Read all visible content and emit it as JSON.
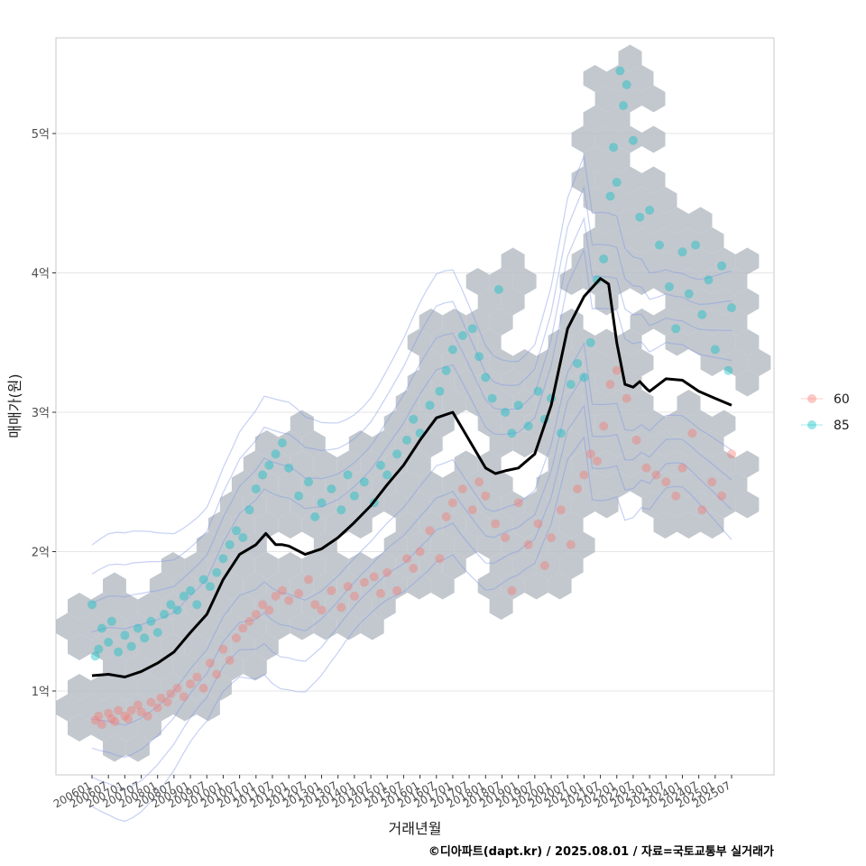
{
  "chart_data": {
    "type": "scatter",
    "xlabel": "거래년월",
    "ylabel": "매매가(원)",
    "caption": "©디아파트(dapt.kr) / 2025.08.01 / 자료=국토교통부 실거래가",
    "x_tick_labels": [
      "200601",
      "200607",
      "200701",
      "200707",
      "200801",
      "200807",
      "200901",
      "200907",
      "201001",
      "201007",
      "201101",
      "201107",
      "201201",
      "201207",
      "201301",
      "201307",
      "201401",
      "201407",
      "201501",
      "201507",
      "201601",
      "201607",
      "201701",
      "201707",
      "201801",
      "201807",
      "201901",
      "201907",
      "202001",
      "202007",
      "202101",
      "202107",
      "202201",
      "202207",
      "202301",
      "202307",
      "202401",
      "202407",
      "202501",
      "202507"
    ],
    "y_tick_labels": [
      "1억",
      "2억",
      "3억",
      "4억",
      "5억"
    ],
    "y_tick_values": [
      1,
      2,
      3,
      4,
      5
    ],
    "ylim": [
      0.4,
      5.7
    ],
    "grid": true,
    "legend_position": "right",
    "legend": [
      {
        "label": "60",
        "color": "#F8766D"
      },
      {
        "label": "85",
        "color": "#00BFC4"
      }
    ],
    "hexbin_color": "#b3bac2",
    "contour_color": "#8096e6",
    "trend_color": "#000000",
    "trend_series": {
      "name": "",
      "x": [
        2006.0,
        2006.5,
        2007.0,
        2007.5,
        2008.0,
        2008.5,
        2009.0,
        2009.5,
        2010.0,
        2010.5,
        2011.0,
        2011.3,
        2011.6,
        2011.8,
        2012.0,
        2012.5,
        2013.0,
        2013.5,
        2014.0,
        2014.5,
        2015.0,
        2015.5,
        2016.0,
        2016.5,
        2017.0,
        2017.5,
        2018.0,
        2018.3,
        2018.6,
        2019.0,
        2019.5,
        2020.0,
        2020.5,
        2021.0,
        2021.5,
        2021.75,
        2022.0,
        2022.25,
        2022.5,
        2022.7,
        2022.9,
        2023.0,
        2023.5,
        2024.0,
        2024.5,
        2025.0,
        2025.5
      ],
      "y": [
        1.11,
        1.12,
        1.1,
        1.14,
        1.2,
        1.28,
        1.42,
        1.55,
        1.8,
        1.98,
        2.05,
        2.13,
        2.05,
        2.05,
        2.04,
        1.98,
        2.02,
        2.1,
        2.21,
        2.33,
        2.48,
        2.62,
        2.8,
        2.96,
        3.0,
        2.8,
        2.6,
        2.56,
        2.58,
        2.6,
        2.7,
        3.05,
        3.6,
        3.83,
        3.96,
        3.92,
        3.5,
        3.2,
        3.18,
        3.22,
        3.17,
        3.15,
        3.24,
        3.23,
        3.15,
        3.1,
        3.05
      ]
    },
    "series": [
      {
        "name": "60",
        "color": "#F8766D",
        "points": [
          [
            2006.1,
            0.79
          ],
          [
            2006.2,
            0.82
          ],
          [
            2006.3,
            0.76
          ],
          [
            2006.5,
            0.84
          ],
          [
            2006.6,
            0.8
          ],
          [
            2006.7,
            0.78
          ],
          [
            2006.8,
            0.86
          ],
          [
            2007.0,
            0.82
          ],
          [
            2007.1,
            0.8
          ],
          [
            2007.2,
            0.86
          ],
          [
            2007.4,
            0.9
          ],
          [
            2007.5,
            0.85
          ],
          [
            2007.7,
            0.82
          ],
          [
            2007.8,
            0.92
          ],
          [
            2008.0,
            0.88
          ],
          [
            2008.1,
            0.95
          ],
          [
            2008.3,
            0.92
          ],
          [
            2008.4,
            0.98
          ],
          [
            2008.6,
            1.02
          ],
          [
            2008.8,
            0.96
          ],
          [
            2009.0,
            1.05
          ],
          [
            2009.2,
            1.1
          ],
          [
            2009.4,
            1.02
          ],
          [
            2009.6,
            1.2
          ],
          [
            2009.8,
            1.12
          ],
          [
            2010.0,
            1.3
          ],
          [
            2010.2,
            1.22
          ],
          [
            2010.4,
            1.38
          ],
          [
            2010.6,
            1.45
          ],
          [
            2010.8,
            1.5
          ],
          [
            2011.0,
            1.55
          ],
          [
            2011.2,
            1.62
          ],
          [
            2011.4,
            1.58
          ],
          [
            2011.6,
            1.68
          ],
          [
            2011.8,
            1.72
          ],
          [
            2012.0,
            1.65
          ],
          [
            2012.3,
            1.7
          ],
          [
            2012.6,
            1.8
          ],
          [
            2012.8,
            1.62
          ],
          [
            2013.0,
            1.58
          ],
          [
            2013.3,
            1.72
          ],
          [
            2013.6,
            1.6
          ],
          [
            2013.8,
            1.75
          ],
          [
            2014.0,
            1.68
          ],
          [
            2014.3,
            1.78
          ],
          [
            2014.6,
            1.82
          ],
          [
            2014.8,
            1.7
          ],
          [
            2015.0,
            1.85
          ],
          [
            2015.3,
            1.72
          ],
          [
            2015.6,
            1.95
          ],
          [
            2015.8,
            1.88
          ],
          [
            2016.0,
            2.0
          ],
          [
            2016.3,
            2.15
          ],
          [
            2016.6,
            1.95
          ],
          [
            2016.8,
            2.25
          ],
          [
            2017.0,
            2.35
          ],
          [
            2017.3,
            2.45
          ],
          [
            2017.6,
            2.3
          ],
          [
            2017.8,
            2.5
          ],
          [
            2018.0,
            2.4
          ],
          [
            2018.3,
            2.2
          ],
          [
            2018.6,
            2.1
          ],
          [
            2018.8,
            1.72
          ],
          [
            2019.0,
            2.35
          ],
          [
            2019.3,
            2.05
          ],
          [
            2019.6,
            2.2
          ],
          [
            2019.8,
            1.9
          ],
          [
            2020.0,
            2.1
          ],
          [
            2020.3,
            2.3
          ],
          [
            2020.6,
            2.05
          ],
          [
            2020.8,
            2.45
          ],
          [
            2021.0,
            2.55
          ],
          [
            2021.2,
            2.7
          ],
          [
            2021.4,
            2.65
          ],
          [
            2021.6,
            2.9
          ],
          [
            2021.8,
            3.2
          ],
          [
            2022.0,
            3.3
          ],
          [
            2022.3,
            3.1
          ],
          [
            2022.6,
            2.8
          ],
          [
            2022.9,
            2.6
          ],
          [
            2023.2,
            2.55
          ],
          [
            2023.5,
            2.5
          ],
          [
            2023.8,
            2.4
          ],
          [
            2024.0,
            2.6
          ],
          [
            2024.3,
            2.85
          ],
          [
            2024.6,
            2.3
          ],
          [
            2024.9,
            2.5
          ],
          [
            2025.2,
            2.4
          ],
          [
            2025.5,
            2.7
          ]
        ]
      },
      {
        "name": "85",
        "color": "#00BFC4",
        "points": [
          [
            2006.0,
            1.62
          ],
          [
            2006.1,
            1.25
          ],
          [
            2006.2,
            1.3
          ],
          [
            2006.3,
            1.45
          ],
          [
            2006.5,
            1.35
          ],
          [
            2006.6,
            1.5
          ],
          [
            2006.8,
            1.28
          ],
          [
            2007.0,
            1.4
          ],
          [
            2007.2,
            1.32
          ],
          [
            2007.4,
            1.45
          ],
          [
            2007.6,
            1.38
          ],
          [
            2007.8,
            1.5
          ],
          [
            2008.0,
            1.42
          ],
          [
            2008.2,
            1.55
          ],
          [
            2008.4,
            1.62
          ],
          [
            2008.6,
            1.58
          ],
          [
            2008.8,
            1.68
          ],
          [
            2009.0,
            1.72
          ],
          [
            2009.2,
            1.62
          ],
          [
            2009.4,
            1.8
          ],
          [
            2009.6,
            1.75
          ],
          [
            2009.8,
            1.85
          ],
          [
            2010.0,
            1.95
          ],
          [
            2010.2,
            2.05
          ],
          [
            2010.4,
            2.15
          ],
          [
            2010.6,
            2.1
          ],
          [
            2010.8,
            2.3
          ],
          [
            2011.0,
            2.45
          ],
          [
            2011.2,
            2.55
          ],
          [
            2011.4,
            2.62
          ],
          [
            2011.6,
            2.7
          ],
          [
            2011.8,
            2.78
          ],
          [
            2012.0,
            2.6
          ],
          [
            2012.3,
            2.4
          ],
          [
            2012.6,
            2.5
          ],
          [
            2012.8,
            2.25
          ],
          [
            2013.0,
            2.35
          ],
          [
            2013.3,
            2.45
          ],
          [
            2013.6,
            2.3
          ],
          [
            2013.8,
            2.55
          ],
          [
            2014.0,
            2.4
          ],
          [
            2014.3,
            2.5
          ],
          [
            2014.6,
            2.35
          ],
          [
            2014.8,
            2.62
          ],
          [
            2015.0,
            2.55
          ],
          [
            2015.3,
            2.7
          ],
          [
            2015.6,
            2.8
          ],
          [
            2015.8,
            2.95
          ],
          [
            2016.0,
            2.85
          ],
          [
            2016.3,
            3.05
          ],
          [
            2016.6,
            3.15
          ],
          [
            2016.8,
            3.3
          ],
          [
            2017.0,
            3.45
          ],
          [
            2017.3,
            3.55
          ],
          [
            2017.6,
            3.6
          ],
          [
            2017.8,
            3.4
          ],
          [
            2018.0,
            3.25
          ],
          [
            2018.2,
            3.1
          ],
          [
            2018.4,
            3.88
          ],
          [
            2018.6,
            3.0
          ],
          [
            2018.8,
            2.85
          ],
          [
            2019.0,
            3.05
          ],
          [
            2019.3,
            2.9
          ],
          [
            2019.6,
            3.15
          ],
          [
            2019.8,
            2.95
          ],
          [
            2020.0,
            3.1
          ],
          [
            2020.3,
            2.85
          ],
          [
            2020.6,
            3.2
          ],
          [
            2020.8,
            3.35
          ],
          [
            2021.0,
            3.25
          ],
          [
            2021.2,
            3.5
          ],
          [
            2021.4,
            3.95
          ],
          [
            2021.6,
            4.1
          ],
          [
            2021.8,
            4.55
          ],
          [
            2021.9,
            4.9
          ],
          [
            2022.0,
            4.65
          ],
          [
            2022.1,
            5.45
          ],
          [
            2022.2,
            5.2
          ],
          [
            2022.3,
            5.35
          ],
          [
            2022.5,
            4.95
          ],
          [
            2022.7,
            4.4
          ],
          [
            2023.0,
            4.45
          ],
          [
            2023.3,
            4.2
          ],
          [
            2023.6,
            3.9
          ],
          [
            2023.8,
            3.6
          ],
          [
            2024.0,
            4.15
          ],
          [
            2024.2,
            3.85
          ],
          [
            2024.4,
            4.2
          ],
          [
            2024.6,
            3.7
          ],
          [
            2024.8,
            3.95
          ],
          [
            2025.0,
            3.45
          ],
          [
            2025.2,
            4.05
          ],
          [
            2025.4,
            3.3
          ],
          [
            2025.5,
            3.75
          ]
        ]
      }
    ]
  }
}
